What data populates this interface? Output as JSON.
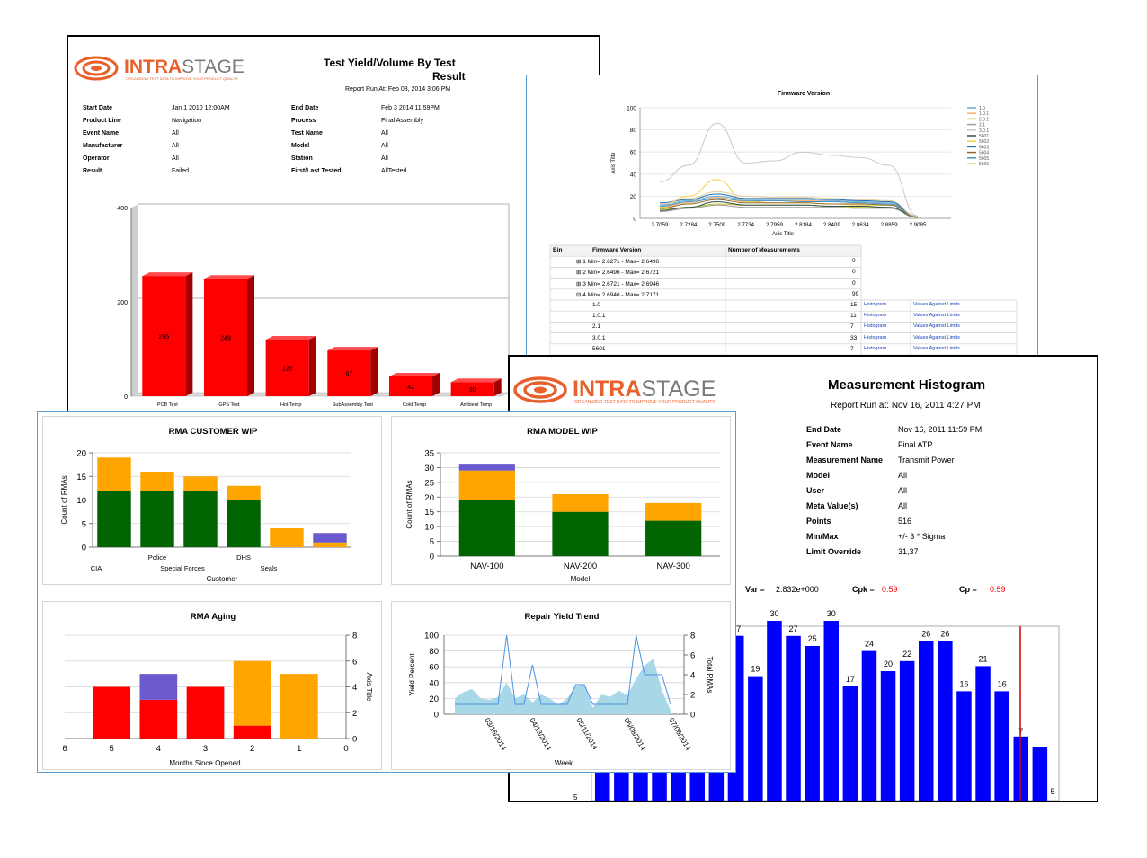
{
  "brand": {
    "name_a": "INTRA",
    "name_b": "STAGE",
    "tagline": "ORGANIZING TEST DATA TO IMPROVE YOUR PRODUCT QUALITY"
  },
  "yield_report": {
    "title_line1": "Test Yield/Volume By Test",
    "title_line2": "Result",
    "run_at": "Report Run At:  Feb 03, 2014  3:06 PM",
    "fields": [
      {
        "label": "Start Date",
        "value": "Jan  1 2010 12:00AM",
        "label2": "End Date",
        "value2": "Feb  3 2014 11:59PM"
      },
      {
        "label": "Product Line",
        "value": "Navigation",
        "label2": "Process",
        "value2": "Final Assembly"
      },
      {
        "label": "Event Name",
        "value": "All",
        "label2": "Test Name",
        "value2": "All"
      },
      {
        "label": "Manufacturer",
        "value": "All",
        "label2": "Model",
        "value2": "All"
      },
      {
        "label": "Operator",
        "value": "All",
        "label2": "Station",
        "value2": "All"
      },
      {
        "label": "Result",
        "value": "Failed",
        "label2": "First/Last Tested",
        "value2": "AllTested"
      }
    ]
  },
  "firmware_report": {
    "table_headers": [
      "Bin",
      "Firmware Version",
      "Number of Measurements"
    ],
    "bins": [
      {
        "label": "⊞ 1  Min= 2.6271 - Max= 2.6496",
        "count": "0"
      },
      {
        "label": "⊞ 2  Min= 2.6496 - Max= 2.6721",
        "count": "0"
      },
      {
        "label": "⊞ 3  Min= 2.6721 - Max= 2.6946",
        "count": "0"
      },
      {
        "label": "⊟ 4  Min= 2.6946 - Max= 2.7171",
        "count": "99"
      }
    ],
    "sub_rows": [
      {
        "version": "1.0",
        "count": "15",
        "link1": "Histogram",
        "link2": "Values Against Limits"
      },
      {
        "version": "1.0.1",
        "count": "11",
        "link1": "Histogram",
        "link2": "Values Against Limits"
      },
      {
        "version": "2.1",
        "count": "7",
        "link1": "Histogram",
        "link2": "Values Against Limits"
      },
      {
        "version": "3.0.1",
        "count": "33",
        "link1": "Histogram",
        "link2": "Values Against Limits"
      },
      {
        "version": "5601",
        "count": "7",
        "link1": "Histogram",
        "link2": "Values Against Limits"
      }
    ]
  },
  "histogram_report": {
    "title": "Measurement Histogram",
    "run_at": "Report Run at:  Nov 16, 2011  4:27 PM",
    "fields": [
      {
        "label": "End Date",
        "value": "Nov 16, 2011  11:59 PM"
      },
      {
        "label": "Event Name",
        "value": "Final ATP"
      },
      {
        "label": "Measurement Name",
        "value": "Transmit Power"
      },
      {
        "label": "Model",
        "value": " All"
      },
      {
        "label": "User",
        "value": "All"
      },
      {
        "label": "Meta Value(s)",
        "value": "All"
      },
      {
        "label": "Points",
        "value": "516"
      },
      {
        "label": "Min/Max",
        "value": "+/-  3 * Sigma"
      },
      {
        "label": "Limit Override",
        "value": "31,37"
      }
    ],
    "stats": {
      "var_label": "Var =",
      "var_value": "2.832e+000",
      "cpk_label": "Cpk =",
      "cpk_value": "0.59",
      "cp_label": "Cp =",
      "cp_value": "0.59"
    },
    "partial_y_tick": "5"
  },
  "colors": {
    "red": "#ff0000",
    "orange": "#ffa500",
    "green": "#006400",
    "purple": "#6a5acd",
    "blue": "#0000ff",
    "light_blue": "#a8d8e8",
    "line_blue": "#4a90e2"
  },
  "chart_data": [
    {
      "type": "bar",
      "title": "",
      "categories": [
        "PCB Test",
        "GPS Test",
        "Hot Temp",
        "SubAssembly Test",
        "Cold Temp",
        "Ambient Temp"
      ],
      "values": [
        255,
        249,
        120,
        97,
        42,
        30
      ],
      "yticks": [
        "0",
        "200",
        "400"
      ],
      "ylim": [
        0,
        400
      ]
    },
    {
      "type": "line",
      "title": "Firmware Version",
      "xlabel": "Axis Title",
      "ylabel": "Axis Title",
      "x": [
        "2.7059",
        "2.7284",
        "2.7509",
        "2.7734",
        "2.7959",
        "2.8184",
        "2.8409",
        "2.8634",
        "2.8859",
        "2.9085"
      ],
      "yticks": [
        "0",
        "20",
        "40",
        "60",
        "80",
        "100"
      ],
      "ylim": [
        0,
        100
      ],
      "series": [
        {
          "name": "1.0",
          "color": "#6baed6",
          "values": [
            12,
            16,
            20,
            17,
            17,
            17,
            16,
            15,
            14,
            2
          ]
        },
        {
          "name": "1.0.1",
          "color": "#fdae6b",
          "values": [
            10,
            14,
            19,
            15,
            16,
            16,
            15,
            14,
            13,
            2
          ]
        },
        {
          "name": "2.0.1",
          "color": "#bcbd22",
          "values": [
            8,
            10,
            13,
            12,
            12,
            12,
            11,
            10,
            10,
            1
          ]
        },
        {
          "name": "2.1",
          "color": "#9e9e9e",
          "values": [
            6,
            9,
            12,
            10,
            10,
            10,
            10,
            9,
            9,
            1
          ]
        },
        {
          "name": "3.0.1",
          "color": "#c8c8c8",
          "values": [
            33,
            48,
            86,
            50,
            52,
            60,
            57,
            55,
            48,
            2
          ]
        },
        {
          "name": "5601",
          "color": "#2f4f4f",
          "values": [
            7,
            10,
            15,
            12,
            12,
            12,
            11,
            11,
            10,
            1
          ]
        },
        {
          "name": "5602",
          "color": "#f4d03f",
          "values": [
            10,
            20,
            35,
            15,
            14,
            14,
            13,
            12,
            12,
            1
          ]
        },
        {
          "name": "5603",
          "color": "#2171b5",
          "values": [
            14,
            17,
            22,
            18,
            18,
            18,
            17,
            16,
            15,
            2
          ]
        },
        {
          "name": "5604",
          "color": "#8c6d31",
          "values": [
            9,
            13,
            17,
            14,
            14,
            14,
            13,
            13,
            12,
            1
          ]
        },
        {
          "name": "5605",
          "color": "#4292c6",
          "values": [
            11,
            15,
            18,
            16,
            16,
            15,
            15,
            14,
            13,
            2
          ]
        },
        {
          "name": "5606",
          "color": "#e7cb94",
          "values": [
            13,
            18,
            24,
            20,
            19,
            19,
            18,
            17,
            16,
            2
          ]
        }
      ]
    },
    {
      "type": "bar",
      "title": "",
      "values": [
        27,
        19,
        30,
        27,
        25,
        30,
        17,
        24,
        20,
        22,
        26,
        26,
        16,
        21,
        16,
        7,
        5
      ],
      "ylim": [
        0,
        33
      ]
    },
    {
      "type": "bar",
      "title": "RMA CUSTOMER WIP",
      "xlabel": "Customer",
      "ylabel": "Count of RMAs",
      "categories": [
        "CIA",
        "Police",
        "Special Forces",
        "DHS",
        "Seals",
        ""
      ],
      "yticks": [
        "0",
        "5",
        "10",
        "15",
        "20"
      ],
      "ylim": [
        0,
        20
      ],
      "series": [
        {
          "color": "#006400",
          "values": [
            12,
            12,
            12,
            10,
            0,
            0
          ]
        },
        {
          "color": "#ffa500",
          "values": [
            7,
            4,
            3,
            3,
            4,
            1
          ]
        },
        {
          "color": "#6a5acd",
          "values": [
            0,
            0,
            0,
            0,
            0,
            2
          ]
        }
      ]
    },
    {
      "type": "bar",
      "title": "RMA MODEL WIP",
      "xlabel": "Model",
      "ylabel": "Count of RMAs",
      "categories": [
        "NAV-100",
        "NAV-200",
        "NAV-300"
      ],
      "yticks": [
        "0",
        "5",
        "10",
        "15",
        "20",
        "25",
        "30",
        "35"
      ],
      "ylim": [
        0,
        35
      ],
      "series": [
        {
          "color": "#006400",
          "values": [
            19,
            15,
            12
          ]
        },
        {
          "color": "#ffa500",
          "values": [
            10,
            6,
            6
          ]
        },
        {
          "color": "#6a5acd",
          "values": [
            2,
            0,
            0
          ]
        }
      ]
    },
    {
      "type": "bar",
      "title": "RMA Aging",
      "xlabel": "Months Since Opened",
      "ylabel": "Axis Title",
      "categories": [
        "5",
        "4",
        "3",
        "2",
        "1"
      ],
      "xticks": [
        "6",
        "5",
        "4",
        "3",
        "2",
        "1",
        "0"
      ],
      "yticks": [
        "0",
        "2",
        "4",
        "6",
        "8"
      ],
      "ylim": [
        0,
        8
      ],
      "series": [
        {
          "color": "#ff0000",
          "values": [
            4,
            3,
            4,
            1,
            0
          ]
        },
        {
          "color": "#ffa500",
          "values": [
            0,
            0,
            0,
            5,
            5
          ]
        },
        {
          "color": "#6a5acd",
          "values": [
            0,
            2,
            0,
            0,
            0
          ]
        }
      ],
      "series_order_note": ""
    },
    {
      "type": "area",
      "title": "Repair Yield Trend",
      "xlabel": "Week",
      "ylabel": "Yield Percent",
      "y2label": "Total RMAs",
      "xticks": [
        "03/16/2014",
        "04/13/2014",
        "05/11/2014",
        "06/08/2014",
        "07/06/2014"
      ],
      "yticks": [
        "0",
        "20",
        "40",
        "60",
        "80",
        "100"
      ],
      "y2ticks": [
        "0",
        "2",
        "4",
        "6",
        "8"
      ],
      "ylim": [
        0,
        100
      ],
      "y2lim": [
        0,
        8
      ],
      "area_values": [
        20,
        28,
        32,
        20,
        18,
        22,
        40,
        20,
        25,
        15,
        25,
        20,
        12,
        20,
        35,
        38,
        8,
        25,
        22,
        30,
        24,
        45,
        62,
        70,
        30,
        5
      ],
      "line_values": [
        1,
        1,
        1,
        1,
        1,
        1,
        8,
        1,
        1,
        5,
        1,
        1,
        1,
        1,
        3,
        3,
        1,
        1,
        1,
        1,
        1,
        8,
        4,
        4,
        4,
        1
      ]
    }
  ]
}
